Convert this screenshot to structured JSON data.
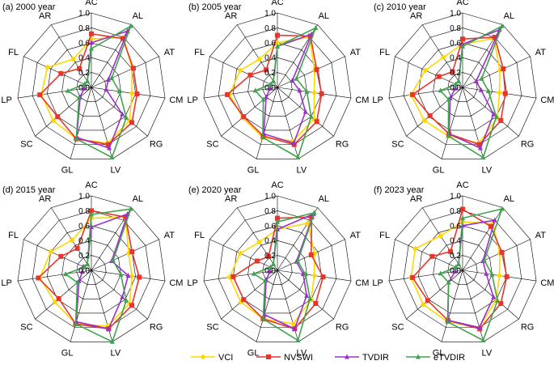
{
  "legend": [
    {
      "name": "VCI",
      "color": "#FFD700",
      "marker": "diamond"
    },
    {
      "name": "NVSWI",
      "color": "#E8352C",
      "marker": "square"
    },
    {
      "name": "TVDIR",
      "color": "#9B30C8",
      "marker": "triangle"
    },
    {
      "name": "eTVDIR",
      "color": "#3FA34D",
      "marker": "triangle"
    }
  ],
  "chart_data": [
    {
      "type": "radar",
      "title": "(a) 2000 year",
      "categories": [
        "AC",
        "AL",
        "AT",
        "CM",
        "RG",
        "LV",
        "GL",
        "SC",
        "LP",
        "FL",
        "AR"
      ],
      "rlim": [
        0.0,
        1.0
      ],
      "rticks": [
        "0.0",
        "0.2",
        "0.4",
        "0.6",
        "0.8",
        "1.0"
      ],
      "series": [
        {
          "name": "VCI",
          "values": [
            0.65,
            0.8,
            0.6,
            0.55,
            0.68,
            0.78,
            0.72,
            0.68,
            0.68,
            0.65,
            0.45
          ]
        },
        {
          "name": "NVSWI",
          "values": [
            0.72,
            0.78,
            0.62,
            0.62,
            0.72,
            0.8,
            0.72,
            0.6,
            0.7,
            0.45,
            0.3
          ]
        },
        {
          "name": "TVDIR",
          "values": [
            0.6,
            0.9,
            0.25,
            0.2,
            0.55,
            0.85,
            0.7,
            0.2,
            0.1,
            0.1,
            0.1
          ]
        },
        {
          "name": "eTVDIR",
          "values": [
            0.52,
            0.98,
            0.3,
            0.38,
            0.62,
            0.98,
            0.72,
            0.22,
            0.32,
            0.1,
            0.1
          ]
        }
      ]
    },
    {
      "type": "radar",
      "title": "(b) 2005 year",
      "categories": [
        "AC",
        "AL",
        "AT",
        "CM",
        "RG",
        "LV",
        "GL",
        "SC",
        "LP",
        "FL",
        "AR"
      ],
      "rlim": [
        0.0,
        1.0
      ],
      "rticks": [
        "0.0",
        "0.2",
        "0.4",
        "0.6",
        "0.8",
        "1.0"
      ],
      "series": [
        {
          "name": "VCI",
          "values": [
            0.6,
            0.8,
            0.55,
            0.5,
            0.65,
            0.75,
            0.7,
            0.62,
            0.65,
            0.55,
            0.45
          ]
        },
        {
          "name": "NVSWI",
          "values": [
            0.7,
            0.82,
            0.58,
            0.6,
            0.7,
            0.8,
            0.68,
            0.6,
            0.68,
            0.4,
            0.28
          ]
        },
        {
          "name": "TVDIR",
          "values": [
            0.55,
            0.85,
            0.22,
            0.3,
            0.5,
            0.78,
            0.65,
            0.2,
            0.1,
            0.1,
            0.1
          ]
        },
        {
          "name": "eTVDIR",
          "values": [
            0.55,
            0.95,
            0.28,
            0.4,
            0.6,
            0.98,
            0.7,
            0.25,
            0.3,
            0.1,
            0.1
          ]
        }
      ]
    },
    {
      "type": "radar",
      "title": "(c) 2010 year",
      "categories": [
        "AC",
        "AL",
        "AT",
        "CM",
        "RG",
        "LV",
        "GL",
        "SC",
        "LP",
        "FL",
        "AR"
      ],
      "rlim": [
        0.0,
        1.0
      ],
      "rticks": [
        "0.0",
        "0.2",
        "0.4",
        "0.6",
        "0.8",
        "1.0"
      ],
      "series": [
        {
          "name": "VCI",
          "values": [
            0.58,
            0.78,
            0.55,
            0.5,
            0.62,
            0.78,
            0.68,
            0.68,
            0.7,
            0.55,
            0.48
          ]
        },
        {
          "name": "NVSWI",
          "values": [
            0.65,
            0.8,
            0.6,
            0.58,
            0.68,
            0.8,
            0.65,
            0.58,
            0.68,
            0.35,
            0.25
          ]
        },
        {
          "name": "TVDIR",
          "values": [
            0.58,
            0.92,
            0.2,
            0.25,
            0.55,
            0.85,
            0.65,
            0.22,
            0.1,
            0.1,
            0.1
          ]
        },
        {
          "name": "eTVDIR",
          "values": [
            0.55,
            0.98,
            0.28,
            0.35,
            0.6,
            0.98,
            0.68,
            0.25,
            0.3,
            0.1,
            0.1
          ]
        }
      ]
    },
    {
      "type": "radar",
      "title": "(d) 2015 year",
      "categories": [
        "AC",
        "AL",
        "AT",
        "CM",
        "RG",
        "LV",
        "GL",
        "SC",
        "LP",
        "FL",
        "AR"
      ],
      "rlim": [
        0.0,
        1.0
      ],
      "rticks": [
        "0.0",
        "0.2",
        "0.4",
        "0.6",
        "0.8",
        "1.0"
      ],
      "series": [
        {
          "name": "VCI",
          "values": [
            0.7,
            0.85,
            0.55,
            0.55,
            0.68,
            0.78,
            0.75,
            0.65,
            0.7,
            0.6,
            0.48
          ]
        },
        {
          "name": "NVSWI",
          "values": [
            0.8,
            0.85,
            0.6,
            0.65,
            0.72,
            0.82,
            0.75,
            0.58,
            0.72,
            0.45,
            0.35
          ]
        },
        {
          "name": "TVDIR",
          "values": [
            0.58,
            0.9,
            0.3,
            0.5,
            0.55,
            0.82,
            0.72,
            0.22,
            0.12,
            0.12,
            0.1
          ]
        },
        {
          "name": "eTVDIR",
          "values": [
            0.75,
            0.98,
            0.32,
            0.4,
            0.62,
            1.0,
            0.75,
            0.25,
            0.35,
            0.1,
            0.1
          ]
        }
      ]
    },
    {
      "type": "radar",
      "title": "(e) 2020 year",
      "categories": [
        "AC",
        "AL",
        "AT",
        "CM",
        "RG",
        "LV",
        "GL",
        "SC",
        "LP",
        "FL",
        "AR"
      ],
      "rlim": [
        0.0,
        1.0
      ],
      "rticks": [
        "0.0",
        "0.2",
        "0.4",
        "0.6",
        "0.8",
        "1.0"
      ],
      "series": [
        {
          "name": "VCI",
          "values": [
            0.55,
            0.75,
            0.55,
            0.5,
            0.6,
            0.75,
            0.68,
            0.65,
            0.65,
            0.55,
            0.45
          ]
        },
        {
          "name": "NVSWI",
          "values": [
            0.7,
            0.85,
            0.5,
            0.62,
            0.68,
            0.82,
            0.68,
            0.6,
            0.6,
            0.3,
            0.22
          ]
        },
        {
          "name": "TVDIR",
          "values": [
            0.55,
            0.9,
            0.28,
            0.35,
            0.52,
            0.82,
            0.62,
            0.2,
            0.1,
            0.1,
            0.1
          ]
        },
        {
          "name": "eTVDIR",
          "values": [
            0.65,
            0.92,
            0.3,
            0.38,
            0.58,
            0.98,
            0.68,
            0.22,
            0.32,
            0.1,
            0.1
          ]
        }
      ]
    },
    {
      "type": "radar",
      "title": "(f) 2023 year",
      "categories": [
        "AC",
        "AL",
        "AT",
        "CM",
        "RG",
        "LV",
        "GL",
        "SC",
        "LP",
        "FL",
        "AR"
      ],
      "rlim": [
        0.0,
        1.0
      ],
      "rticks": [
        "0.0",
        "0.2",
        "0.4",
        "0.6",
        "0.8",
        "1.0"
      ],
      "series": [
        {
          "name": "VCI",
          "values": [
            0.65,
            0.75,
            0.55,
            0.5,
            0.6,
            0.8,
            0.72,
            0.7,
            0.7,
            0.7,
            0.55
          ]
        },
        {
          "name": "NVSWI",
          "values": [
            0.82,
            0.7,
            0.58,
            0.6,
            0.68,
            0.82,
            0.7,
            0.62,
            0.68,
            0.45,
            0.3
          ]
        },
        {
          "name": "TVDIR",
          "values": [
            0.6,
            0.8,
            0.3,
            0.32,
            0.55,
            0.8,
            0.7,
            0.25,
            0.1,
            0.1,
            0.1
          ]
        },
        {
          "name": "eTVDIR",
          "values": [
            0.7,
            0.98,
            0.32,
            0.4,
            0.62,
            0.98,
            0.72,
            0.25,
            0.3,
            0.1,
            0.1
          ]
        }
      ]
    }
  ]
}
